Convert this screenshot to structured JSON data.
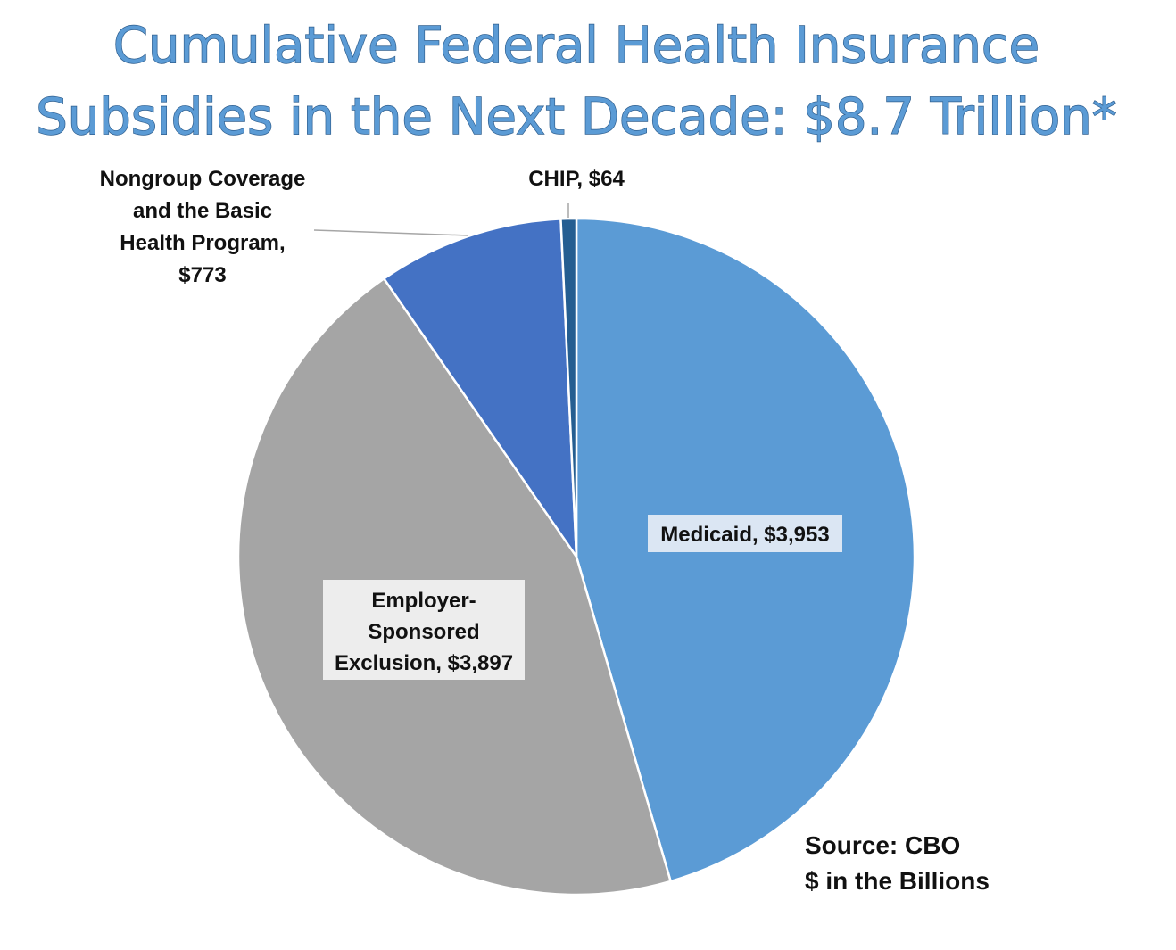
{
  "chart_data": {
    "type": "pie",
    "title_lines": [
      "Cumulative Federal Health Insurance",
      "Subsidies in the Next Decade: $8.7 Trillion*"
    ],
    "slices": [
      {
        "name": "Medicaid",
        "value": 3953,
        "label": "Medicaid, $3,953",
        "color": "#5b9bd5"
      },
      {
        "name": "Employer-Sponsored Exclusion",
        "value": 3897,
        "label_lines": [
          "Employer-",
          "Sponsored",
          "Exclusion,  $3,897"
        ],
        "color": "#a5a5a5"
      },
      {
        "name": "Nongroup Coverage and the Basic Health Program",
        "value": 773,
        "label_lines": [
          "Nongroup Coverage",
          "and the Basic",
          "Health Program,",
          "$773"
        ],
        "color": "#4472c4"
      },
      {
        "name": "CHIP",
        "value": 64,
        "label": "CHIP,  $64",
        "color": "#255e91"
      }
    ],
    "notes": [
      "Source: CBO",
      "$ in the Billions"
    ]
  }
}
